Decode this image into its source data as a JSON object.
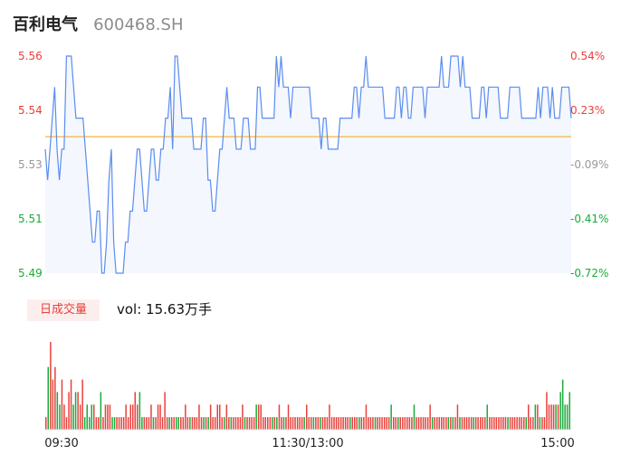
{
  "stock": {
    "name": "百利电气",
    "code": "600468.SH"
  },
  "volume": {
    "tab_label": "日成交量",
    "vol_text": "vol: 15.63万手"
  },
  "colors": {
    "price_line": "#5b8def",
    "avg_line": "#f5b53b",
    "up": "#e8413c",
    "down": "#1aab3b",
    "neutral": "#999999",
    "area": "#f4f7fd"
  },
  "chart_data": {
    "type": "line",
    "title": "",
    "price_axis": {
      "min": 5.49,
      "max": 5.56,
      "ticks": [
        "5.56",
        "5.54",
        "5.53",
        "5.51",
        "5.49"
      ]
    },
    "pct_axis": {
      "ticks": [
        "0.54%",
        "0.23%",
        "-0.09%",
        "-0.41%",
        "-0.72%"
      ]
    },
    "x_ticks": [
      "09:30",
      "11:30/13:00",
      "15:00"
    ],
    "avg_price": 5.534,
    "series": [
      {
        "key": "price",
        "values": [
          5.53,
          5.52,
          5.53,
          5.54,
          5.55,
          5.53,
          5.52,
          5.53,
          5.53,
          5.56,
          5.56,
          5.56,
          5.55,
          5.54,
          5.54,
          5.54,
          5.54,
          5.53,
          5.52,
          5.51,
          5.5,
          5.5,
          5.51,
          5.51,
          5.49,
          5.49,
          5.5,
          5.52,
          5.53,
          5.5,
          5.49,
          5.49,
          5.49,
          5.49,
          5.5,
          5.5,
          5.51,
          5.51,
          5.52,
          5.53,
          5.53,
          5.52,
          5.51,
          5.51,
          5.52,
          5.53,
          5.53,
          5.52,
          5.52,
          5.53,
          5.53,
          5.54,
          5.54,
          5.55,
          5.53,
          5.56,
          5.56,
          5.55,
          5.54,
          5.54,
          5.54,
          5.54,
          5.54,
          5.53,
          5.53,
          5.53,
          5.53,
          5.54,
          5.54,
          5.52,
          5.52,
          5.51,
          5.51,
          5.52,
          5.53,
          5.53,
          5.54,
          5.55,
          5.54,
          5.54,
          5.54,
          5.53,
          5.53,
          5.53,
          5.54,
          5.54,
          5.54,
          5.53,
          5.53,
          5.53,
          5.55,
          5.55,
          5.54,
          5.54,
          5.54,
          5.54,
          5.54,
          5.54,
          5.56,
          5.55,
          5.56,
          5.55,
          5.55,
          5.55,
          5.54,
          5.55,
          5.55,
          5.55,
          5.55,
          5.55,
          5.55,
          5.55,
          5.55,
          5.54,
          5.54,
          5.54,
          5.54,
          5.53,
          5.54,
          5.54,
          5.53,
          5.53,
          5.53,
          5.53,
          5.53,
          5.54,
          5.54,
          5.54,
          5.54,
          5.54,
          5.54,
          5.55,
          5.55,
          5.54,
          5.55,
          5.55,
          5.56,
          5.55,
          5.55,
          5.55,
          5.55,
          5.55,
          5.55,
          5.55,
          5.54,
          5.54,
          5.54,
          5.54,
          5.54,
          5.55,
          5.55,
          5.54,
          5.55,
          5.55,
          5.54,
          5.54,
          5.55,
          5.55,
          5.55,
          5.55,
          5.55,
          5.54,
          5.55,
          5.55,
          5.55,
          5.55,
          5.55,
          5.55,
          5.56,
          5.55,
          5.55,
          5.55,
          5.56,
          5.56,
          5.56,
          5.56,
          5.55,
          5.56,
          5.55,
          5.55,
          5.55,
          5.54,
          5.54,
          5.54,
          5.54,
          5.55,
          5.55,
          5.54,
          5.55,
          5.55,
          5.55,
          5.55,
          5.55,
          5.54,
          5.54,
          5.54,
          5.54,
          5.55,
          5.55,
          5.55,
          5.55,
          5.55,
          5.54,
          5.54,
          5.54,
          5.54,
          5.54,
          5.54,
          5.54,
          5.55,
          5.54,
          5.55,
          5.55,
          5.55,
          5.54,
          5.55,
          5.54,
          5.54,
          5.54,
          5.55,
          5.55,
          5.55,
          5.55,
          5.54
        ]
      },
      {
        "key": "volume",
        "values": [
          1,
          5,
          7,
          4,
          5,
          3,
          2,
          4,
          2,
          1,
          3,
          4,
          2,
          3,
          3,
          2,
          4,
          1,
          2,
          1,
          2,
          2,
          1,
          1,
          3,
          1,
          2,
          2,
          2,
          1,
          1,
          1,
          1,
          1,
          1,
          2,
          1,
          2,
          2,
          3,
          2,
          3,
          1,
          1,
          1,
          1,
          2,
          1,
          1,
          2,
          2,
          1,
          3,
          1,
          1,
          1,
          1,
          1,
          1,
          1,
          1,
          2,
          1,
          1,
          1,
          1,
          1,
          2,
          1,
          1,
          1,
          1,
          2,
          1,
          1,
          2,
          2,
          1,
          1,
          2,
          1,
          1,
          1,
          1,
          1,
          1,
          2,
          1,
          1,
          1,
          1,
          1,
          2,
          2,
          2,
          1,
          1,
          1,
          1,
          1,
          1,
          1,
          2,
          1,
          1,
          1,
          2,
          1,
          1,
          1,
          1,
          1,
          1,
          1,
          2,
          1,
          1,
          1,
          1,
          1,
          1,
          1,
          1,
          1,
          2,
          1,
          1,
          1,
          1,
          1,
          1,
          1,
          1,
          1,
          1,
          1,
          1,
          1,
          1,
          1,
          2,
          1,
          1,
          1,
          1,
          1,
          1,
          1,
          1,
          1,
          1,
          2,
          1,
          1,
          1,
          1,
          1,
          1,
          1,
          1,
          1,
          2,
          1,
          1,
          1,
          1,
          1,
          1,
          2,
          1,
          1,
          1,
          1,
          1,
          1,
          1,
          1,
          1,
          1,
          1,
          2,
          1,
          1,
          1,
          1,
          1,
          1,
          1,
          1,
          1,
          1,
          1,
          1,
          2,
          1,
          1,
          1,
          1,
          1,
          1,
          1,
          1,
          1,
          1,
          1,
          1,
          1,
          1,
          1,
          1,
          1,
          2,
          1,
          1,
          2,
          2,
          1,
          1,
          1,
          3,
          2,
          2,
          2,
          2,
          2,
          3,
          4,
          2,
          2,
          3
        ]
      }
    ]
  }
}
